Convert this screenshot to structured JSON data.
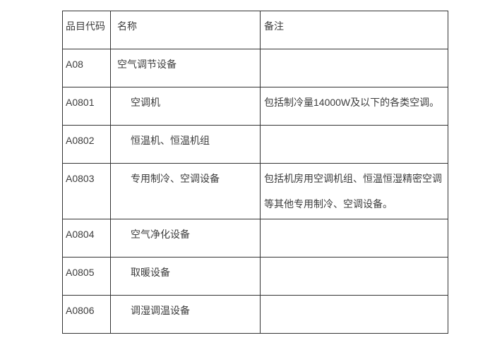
{
  "page": {
    "background_color": "#ffffff",
    "border_color": "#333333",
    "text_color": "#3d3d3d"
  },
  "table": {
    "headers": [
      {
        "key": "code",
        "label": "品目代码"
      },
      {
        "key": "name",
        "label": "名称"
      },
      {
        "key": "remark",
        "label": "备注"
      }
    ],
    "rows": [
      {
        "code": "A08",
        "name": "空气调节设备",
        "remark": "",
        "indent": false
      },
      {
        "code": "A0801",
        "name": "空调机",
        "remark": "包括制冷量14000W及以下的各类空调。",
        "indent": true
      },
      {
        "code": "A0802",
        "name": "恒温机、恒温机组",
        "remark": "",
        "indent": true
      },
      {
        "code": "A0803",
        "name": "专用制冷、空调设备",
        "remark": "包括机房用空调机组、恒温恒湿精密空调等其他专用制冷、空调设备。",
        "indent": true
      },
      {
        "code": "A0804",
        "name": "空气净化设备",
        "remark": "",
        "indent": true
      },
      {
        "code": "A0805",
        "name": "取暖设备",
        "remark": "",
        "indent": true
      },
      {
        "code": "A0806",
        "name": "调湿调温设备",
        "remark": "",
        "indent": true
      }
    ]
  }
}
